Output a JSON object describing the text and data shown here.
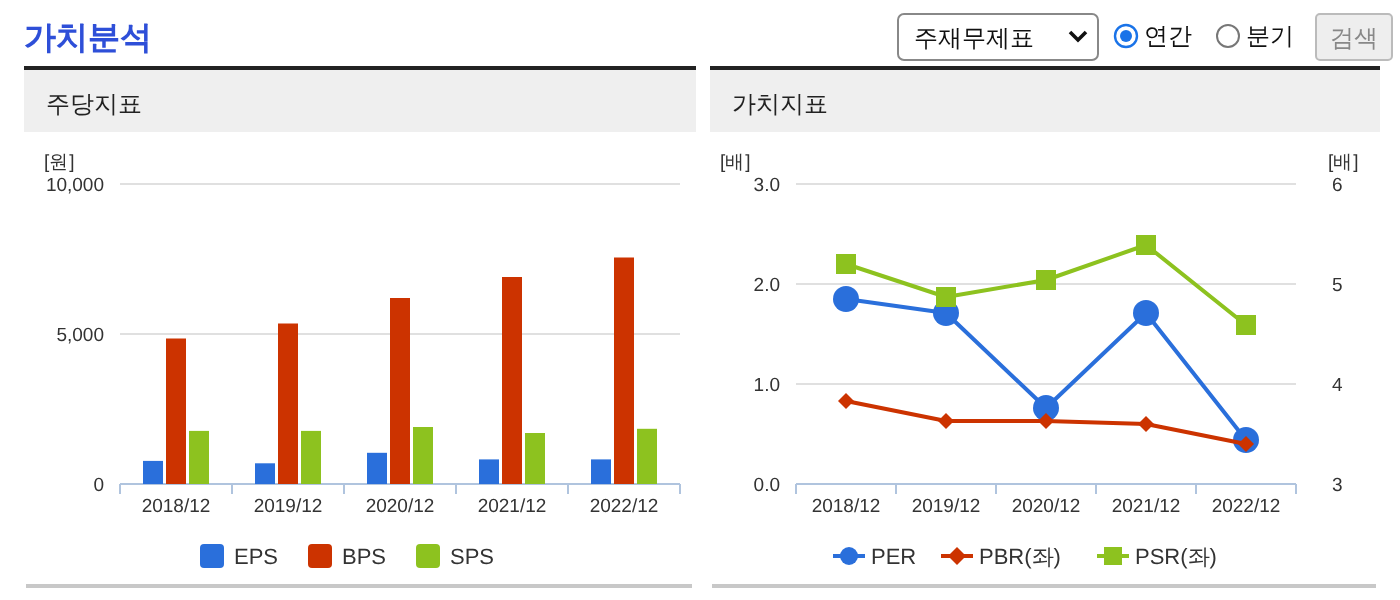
{
  "chart_data": [
    {
      "type": "other",
      "title": "가치분석",
      "annotations": [
        "주재무제표",
        "연간",
        "분기",
        "검색"
      ]
    },
    {
      "type": "bar",
      "title": "주당지표",
      "ylabel": "[원]",
      "categories": [
        "2018/12",
        "2019/12",
        "2020/12",
        "2021/12",
        "2022/12"
      ],
      "series": [
        {
          "name": "EPS",
          "color": "#2a6fdb",
          "values": [
            770,
            690,
            1040,
            820,
            820
          ]
        },
        {
          "name": "BPS",
          "color": "#cc3300",
          "values": [
            4850,
            5350,
            6200,
            6900,
            7550
          ]
        },
        {
          "name": "SPS",
          "color": "#8dc21f",
          "values": [
            1770,
            1770,
            1900,
            1700,
            1840
          ]
        }
      ],
      "ylim": [
        0,
        10000
      ],
      "yticks": [
        {
          "value": 0,
          "label": "0"
        },
        {
          "value": 5000,
          "label": "5,000"
        },
        {
          "value": 10000,
          "label": "10,000"
        }
      ],
      "grid": "y",
      "legend": "bottom"
    },
    {
      "type": "line",
      "title": "가치지표",
      "ylabel": "[배]",
      "y2label": "[배]",
      "categories": [
        "2018/12",
        "2019/12",
        "2020/12",
        "2021/12",
        "2022/12"
      ],
      "series": [
        {
          "name": "PER",
          "color": "#2a6fdb",
          "axis": "y2",
          "marker": "circle",
          "values": [
            4.85,
            4.71,
            3.76,
            4.71,
            3.44
          ]
        },
        {
          "name": "PBR(좌)",
          "color": "#cc3300",
          "marker": "diamond",
          "values": [
            0.83,
            0.63,
            0.63,
            0.6,
            0.4
          ]
        },
        {
          "name": "PSR(좌)",
          "color": "#8dc21f",
          "marker": "square",
          "values": [
            2.2,
            1.87,
            2.04,
            2.39,
            1.59
          ]
        }
      ],
      "ylim": [
        0,
        3
      ],
      "yticks": [
        {
          "value": 0,
          "label": "0.0"
        },
        {
          "value": 1,
          "label": "1.0"
        },
        {
          "value": 2,
          "label": "2.0"
        },
        {
          "value": 3,
          "label": "3.0"
        }
      ],
      "y2lim": [
        3,
        6
      ],
      "y2ticks": [
        3,
        4,
        5,
        6
      ],
      "grid": "y",
      "legend": "bottom"
    }
  ]
}
